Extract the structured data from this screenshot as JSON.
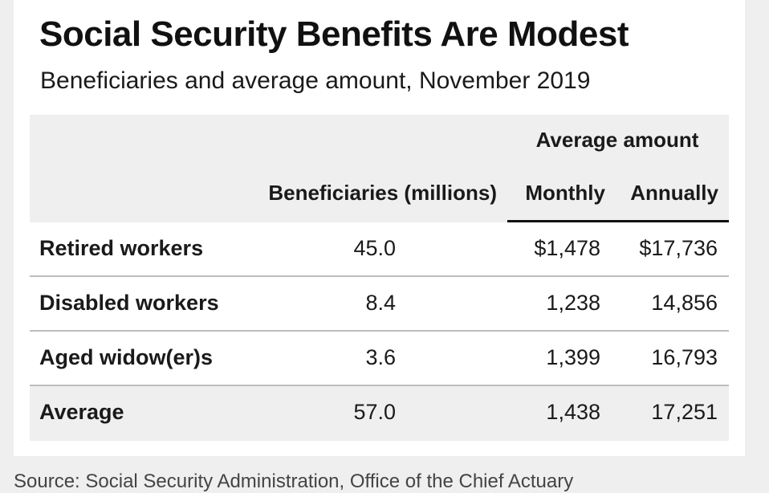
{
  "title": "Social Security Benefits Are Modest",
  "subtitle": "Beneficiaries and average amount, November 2019",
  "table": {
    "group_header": "Average amount",
    "columns": {
      "beneficiaries": "Beneficiaries (millions)",
      "monthly": "Monthly",
      "annually": "Annually"
    },
    "rows": [
      {
        "label": "Retired workers",
        "beneficiaries": "45.0",
        "monthly": "$1,478",
        "annually": "$17,736"
      },
      {
        "label": "Disabled workers",
        "beneficiaries": "8.4",
        "monthly": "1,238",
        "annually": "14,856"
      },
      {
        "label": "Aged widow(er)s",
        "beneficiaries": "3.6",
        "monthly": "1,399",
        "annually": "16,793"
      },
      {
        "label": "Average",
        "beneficiaries": "57.0",
        "monthly": "1,438",
        "annually": "17,251"
      }
    ]
  },
  "source": "Source: Social Security Administration, Office of the Chief Actuary"
}
